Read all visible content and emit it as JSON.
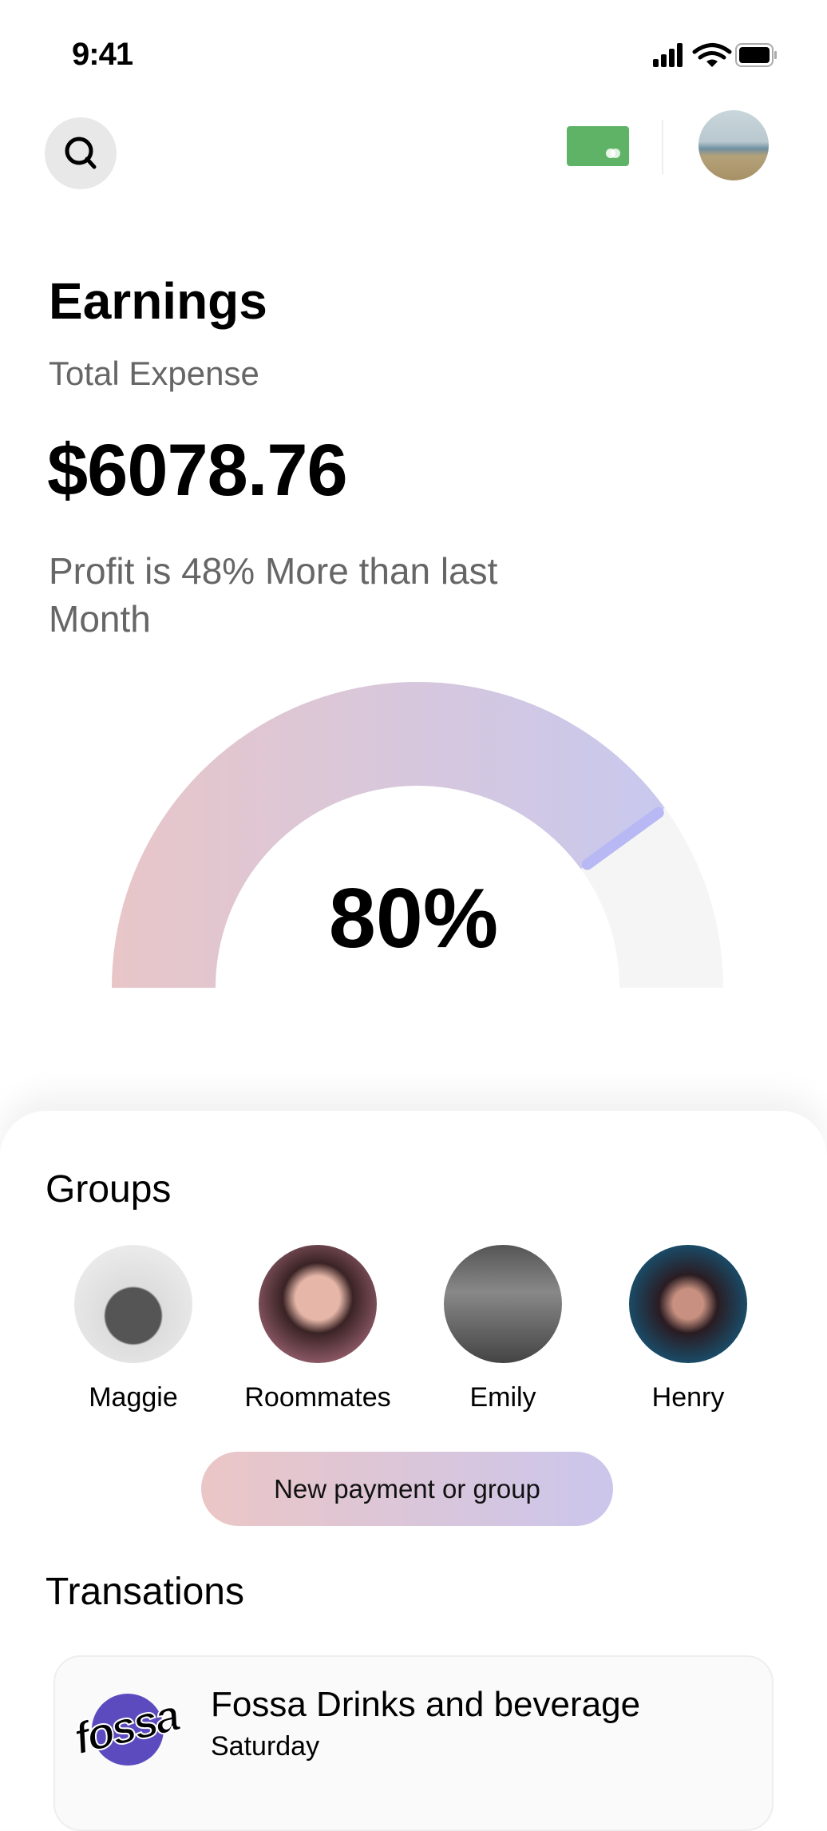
{
  "status_bar": {
    "time": "9:41",
    "icons": [
      "signal-icon",
      "wifi-icon",
      "battery-icon"
    ]
  },
  "header": {
    "search_icon": "search-icon",
    "card_icon": "card-icon",
    "card_color": "#5fb366"
  },
  "earnings": {
    "title": "Earnings",
    "subtitle": "Total Expense",
    "amount": "$6078.76",
    "profit_text": "Profit is 48% More than last Month"
  },
  "gauge": {
    "value": 0.8,
    "label": "80%",
    "gradient": [
      "#e8c6c8",
      "#c8c8ee"
    ],
    "track_color": "#f5f5f5",
    "marker_color": "#b8b8f4"
  },
  "groups": {
    "title": "Groups",
    "items": [
      {
        "name": "Maggie"
      },
      {
        "name": "Roommates"
      },
      {
        "name": "Emily"
      },
      {
        "name": "Henry"
      }
    ],
    "new_button": "New payment or group"
  },
  "transactions": {
    "title": "Transations",
    "items": [
      {
        "logo": "fossa",
        "title": "Fossa Drinks and beverage",
        "date": "Saturday"
      }
    ]
  }
}
